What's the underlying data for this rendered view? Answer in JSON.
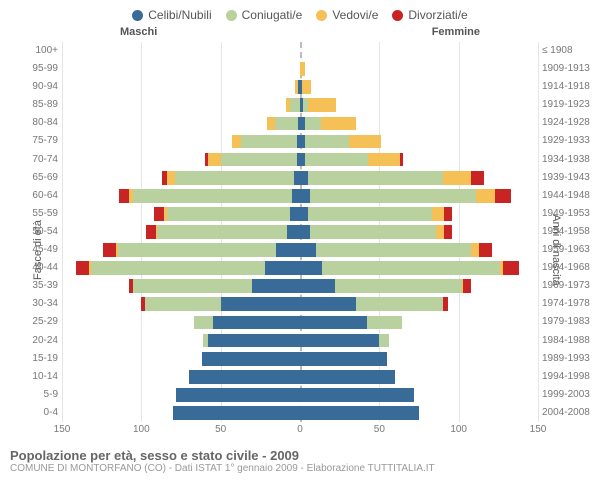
{
  "chart": {
    "type": "population-pyramid",
    "colors": {
      "celibi": "#386b97",
      "coniugati": "#b8d19e",
      "vedovi": "#f5c055",
      "divorziati": "#c92424",
      "grid": "#e5e5e5",
      "center": "#bbbbbb",
      "bg": "#ffffff"
    },
    "legend_items": [
      {
        "key": "celibi",
        "label": "Celibi/Nubili"
      },
      {
        "key": "coniugati",
        "label": "Coniugati/e"
      },
      {
        "key": "vedovi",
        "label": "Vedovi/e"
      },
      {
        "key": "divorziati",
        "label": "Divorziati/e"
      }
    ],
    "header_m": "Maschi",
    "header_f": "Femmine",
    "ylabel_left": "Fasce di età",
    "ylabel_right": "Anni di nascita",
    "xlim": 150,
    "xticks": [
      150,
      100,
      50,
      0,
      50,
      100,
      150
    ],
    "title": "Popolazione per età, sesso e stato civile - 2009",
    "source": "COMUNE DI MONTORFANO (CO) - Dati ISTAT 1° gennaio 2009 - Elaborazione TUTTITALIA.IT",
    "rows": [
      {
        "age": "100+",
        "year": "≤ 1908",
        "m": {
          "c": 0,
          "co": 0,
          "v": 0,
          "d": 0
        },
        "f": {
          "c": 0,
          "co": 0,
          "v": 0,
          "d": 0
        }
      },
      {
        "age": "95-99",
        "year": "1909-1913",
        "m": {
          "c": 0,
          "co": 0,
          "v": 0,
          "d": 0
        },
        "f": {
          "c": 0,
          "co": 0,
          "v": 3,
          "d": 0
        }
      },
      {
        "age": "90-94",
        "year": "1914-1918",
        "m": {
          "c": 1,
          "co": 0,
          "v": 2,
          "d": 0
        },
        "f": {
          "c": 1,
          "co": 0,
          "v": 6,
          "d": 0
        }
      },
      {
        "age": "85-89",
        "year": "1919-1923",
        "m": {
          "c": 0,
          "co": 6,
          "v": 3,
          "d": 0
        },
        "f": {
          "c": 2,
          "co": 3,
          "v": 18,
          "d": 0
        }
      },
      {
        "age": "80-84",
        "year": "1924-1928",
        "m": {
          "c": 1,
          "co": 15,
          "v": 5,
          "d": 0
        },
        "f": {
          "c": 3,
          "co": 10,
          "v": 22,
          "d": 0
        }
      },
      {
        "age": "75-79",
        "year": "1929-1933",
        "m": {
          "c": 2,
          "co": 35,
          "v": 6,
          "d": 0
        },
        "f": {
          "c": 3,
          "co": 28,
          "v": 20,
          "d": 0
        }
      },
      {
        "age": "70-74",
        "year": "1934-1938",
        "m": {
          "c": 2,
          "co": 48,
          "v": 8,
          "d": 2
        },
        "f": {
          "c": 3,
          "co": 40,
          "v": 20,
          "d": 2
        }
      },
      {
        "age": "65-69",
        "year": "1939-1943",
        "m": {
          "c": 4,
          "co": 75,
          "v": 5,
          "d": 3
        },
        "f": {
          "c": 5,
          "co": 85,
          "v": 18,
          "d": 8
        }
      },
      {
        "age": "60-64",
        "year": "1944-1948",
        "m": {
          "c": 5,
          "co": 100,
          "v": 3,
          "d": 6
        },
        "f": {
          "c": 6,
          "co": 105,
          "v": 12,
          "d": 10
        }
      },
      {
        "age": "55-59",
        "year": "1949-1953",
        "m": {
          "c": 6,
          "co": 78,
          "v": 2,
          "d": 6
        },
        "f": {
          "c": 5,
          "co": 78,
          "v": 8,
          "d": 5
        }
      },
      {
        "age": "50-54",
        "year": "1954-1958",
        "m": {
          "c": 8,
          "co": 82,
          "v": 1,
          "d": 6
        },
        "f": {
          "c": 6,
          "co": 80,
          "v": 5,
          "d": 5
        }
      },
      {
        "age": "45-49",
        "year": "1959-1963",
        "m": {
          "c": 15,
          "co": 100,
          "v": 1,
          "d": 8
        },
        "f": {
          "c": 10,
          "co": 98,
          "v": 5,
          "d": 8
        }
      },
      {
        "age": "40-44",
        "year": "1964-1968",
        "m": {
          "c": 22,
          "co": 110,
          "v": 1,
          "d": 8
        },
        "f": {
          "c": 14,
          "co": 112,
          "v": 2,
          "d": 10
        }
      },
      {
        "age": "35-39",
        "year": "1969-1973",
        "m": {
          "c": 30,
          "co": 75,
          "v": 0,
          "d": 3
        },
        "f": {
          "c": 22,
          "co": 80,
          "v": 1,
          "d": 5
        }
      },
      {
        "age": "30-34",
        "year": "1974-1978",
        "m": {
          "c": 50,
          "co": 48,
          "v": 0,
          "d": 2
        },
        "f": {
          "c": 35,
          "co": 55,
          "v": 0,
          "d": 3
        }
      },
      {
        "age": "25-29",
        "year": "1979-1983",
        "m": {
          "c": 55,
          "co": 12,
          "v": 0,
          "d": 0
        },
        "f": {
          "c": 42,
          "co": 22,
          "v": 0,
          "d": 0
        }
      },
      {
        "age": "20-24",
        "year": "1984-1988",
        "m": {
          "c": 58,
          "co": 3,
          "v": 0,
          "d": 0
        },
        "f": {
          "c": 50,
          "co": 6,
          "v": 0,
          "d": 0
        }
      },
      {
        "age": "15-19",
        "year": "1989-1993",
        "m": {
          "c": 62,
          "co": 0,
          "v": 0,
          "d": 0
        },
        "f": {
          "c": 55,
          "co": 0,
          "v": 0,
          "d": 0
        }
      },
      {
        "age": "10-14",
        "year": "1994-1998",
        "m": {
          "c": 70,
          "co": 0,
          "v": 0,
          "d": 0
        },
        "f": {
          "c": 60,
          "co": 0,
          "v": 0,
          "d": 0
        }
      },
      {
        "age": "5-9",
        "year": "1999-2003",
        "m": {
          "c": 78,
          "co": 0,
          "v": 0,
          "d": 0
        },
        "f": {
          "c": 72,
          "co": 0,
          "v": 0,
          "d": 0
        }
      },
      {
        "age": "0-4",
        "year": "2004-2008",
        "m": {
          "c": 80,
          "co": 0,
          "v": 0,
          "d": 0
        },
        "f": {
          "c": 75,
          "co": 0,
          "v": 0,
          "d": 0
        }
      }
    ]
  }
}
